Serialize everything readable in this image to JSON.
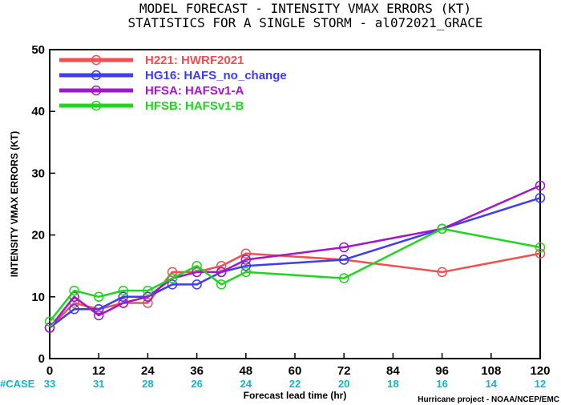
{
  "header": {
    "title_line1": "MODEL FORECAST - INTENSITY VMAX ERRORS (KT)",
    "title_line2": "STATISTICS FOR A SINGLE STORM - al072021_GRACE"
  },
  "footer": {
    "case_prefix": "#CASE",
    "credit": "Hurricane project - NOAA/NCEP/EMC"
  },
  "chart_data": {
    "type": "line",
    "title": "MODEL FORECAST - INTENSITY VMAX ERRORS (KT)",
    "subtitle": "STATISTICS FOR A SINGLE STORM - al072021_GRACE",
    "xlabel": "Forecast lead time (hr)",
    "ylabel": "INTENSITY VMAX ERRORS (KT)",
    "xlim": [
      0,
      120
    ],
    "ylim": [
      0,
      50
    ],
    "x_ticks": [
      0,
      12,
      24,
      36,
      48,
      60,
      72,
      84,
      96,
      108,
      120
    ],
    "y_ticks": [
      0,
      10,
      20,
      30,
      40,
      50
    ],
    "x": [
      0,
      6,
      12,
      18,
      24,
      30,
      36,
      42,
      48,
      72,
      96,
      120
    ],
    "case_counts": [
      {
        "x": 0,
        "count": 33
      },
      {
        "x": 12,
        "count": 31
      },
      {
        "x": 24,
        "count": 28
      },
      {
        "x": 36,
        "count": 26
      },
      {
        "x": 48,
        "count": 24
      },
      {
        "x": 60,
        "count": 22
      },
      {
        "x": 72,
        "count": 20
      },
      {
        "x": 84,
        "count": 18
      },
      {
        "x": 96,
        "count": 16
      },
      {
        "x": 108,
        "count": 14
      },
      {
        "x": 120,
        "count": 12
      }
    ],
    "legend_position": "top-left",
    "grid": false,
    "series": [
      {
        "name": "H221: HWRF2021",
        "color": "#f05050",
        "values": [
          5,
          9,
          8,
          9,
          9,
          14,
          14,
          15,
          17,
          16,
          14,
          17
        ]
      },
      {
        "name": "HG16: HAFS_no_change",
        "color": "#3c3cf5",
        "values": [
          5,
          8,
          8,
          10,
          10,
          12,
          12,
          14,
          15,
          16,
          21,
          26
        ]
      },
      {
        "name": "HFSA: HAFSv1-A",
        "color": "#a018c8",
        "values": [
          5,
          10,
          7,
          9,
          10,
          13,
          14,
          14,
          16,
          18,
          21,
          28
        ]
      },
      {
        "name": "HFSB: HAFSv1-B",
        "color": "#22d422",
        "values": [
          6,
          11,
          10,
          11,
          11,
          13,
          15,
          12,
          14,
          13,
          21,
          18
        ]
      }
    ]
  }
}
